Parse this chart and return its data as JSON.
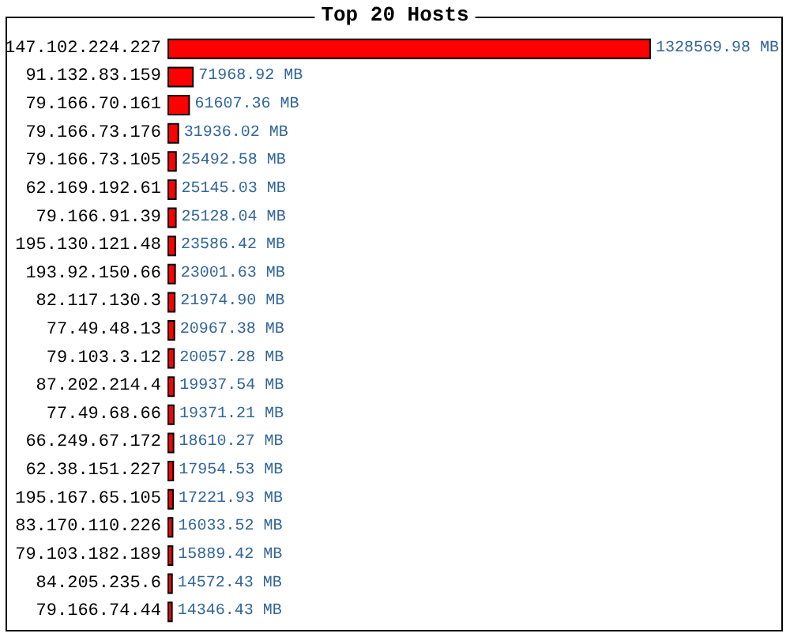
{
  "chart_data": {
    "type": "bar",
    "orientation": "horizontal",
    "title": "Top 20 Hosts",
    "categories": [
      "147.102.224.227",
      "91.132.83.159",
      "79.166.70.161",
      "79.166.73.176",
      "79.166.73.105",
      "62.169.192.61",
      "79.166.91.39",
      "195.130.121.48",
      "193.92.150.66",
      "82.117.130.3",
      "77.49.48.13",
      "79.103.3.12",
      "87.202.214.4",
      "77.49.68.66",
      "66.249.67.172",
      "62.38.151.227",
      "195.167.65.105",
      "83.170.110.226",
      "79.103.182.189",
      "84.205.235.6",
      "79.166.74.44"
    ],
    "values": [
      1328569.98,
      71968.92,
      61607.36,
      31936.02,
      25492.58,
      25145.03,
      25128.04,
      23586.42,
      23001.63,
      21974.9,
      20967.38,
      20057.28,
      19937.54,
      19371.21,
      18610.27,
      17954.53,
      17221.93,
      16033.52,
      15889.42,
      14572.43,
      14346.43
    ],
    "value_labels": [
      "1328569.98 MB",
      "71968.92 MB",
      "61607.36 MB",
      "31936.02 MB",
      "25492.58 MB",
      "25145.03 MB",
      "25128.04 MB",
      "23586.42 MB",
      "23001.63 MB",
      "21974.90 MB",
      "20967.38 MB",
      "20057.28 MB",
      "19937.54 MB",
      "19371.21 MB",
      "18610.27 MB",
      "17954.53 MB",
      "17221.93 MB",
      "16033.52 MB",
      "15889.42 MB",
      "14572.43 MB",
      "14346.43 MB"
    ],
    "color": "#ff0000"
  }
}
